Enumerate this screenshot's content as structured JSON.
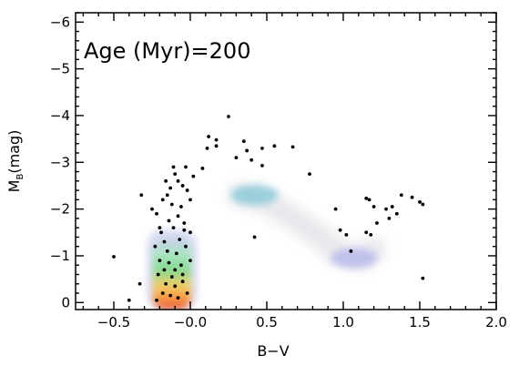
{
  "chart_data": {
    "type": "scatter",
    "annotation": "Age  (Myr)=200",
    "xlabel": "B−V",
    "ylabel_main": "M",
    "ylabel_sub": "B",
    "ylabel_tail": "(mag)",
    "xlim": [
      -0.75,
      2.0
    ],
    "ylim": [
      0.15,
      -6.2
    ],
    "y_inverted": true,
    "x_ticks": [
      {
        "value": -0.5,
        "label": "−0.5"
      },
      {
        "value": 0.0,
        "label": "−0.0"
      },
      {
        "value": 0.5,
        "label": "0.5"
      },
      {
        "value": 1.0,
        "label": "1.0"
      },
      {
        "value": 1.5,
        "label": "1.5"
      },
      {
        "value": 2.0,
        "label": "2.0"
      }
    ],
    "y_ticks": [
      {
        "value": 0,
        "label": "0"
      },
      {
        "value": -1,
        "label": "−1"
      },
      {
        "value": -2,
        "label": "−2"
      },
      {
        "value": -3,
        "label": "−3"
      },
      {
        "value": -4,
        "label": "−4"
      },
      {
        "value": -5,
        "label": "−5"
      },
      {
        "value": -6,
        "label": "−6"
      }
    ],
    "density_model": {
      "main_sequence": {
        "x_center": -0.12,
        "y_top": -1.3,
        "y_bottom": 0.0,
        "colors": [
          "#c9ccec",
          "#a9e7c0",
          "#7fd98a",
          "#f0d060",
          "#ff9b3c",
          "#e2442a"
        ]
      },
      "giant_branch": [
        {
          "x": 0.32,
          "y": -2.3
        },
        {
          "x": 0.42,
          "y": -2.25
        },
        {
          "x": 0.55,
          "y": -2.05
        },
        {
          "x": 0.7,
          "y": -1.75
        },
        {
          "x": 0.85,
          "y": -1.4
        },
        {
          "x": 0.98,
          "y": -1.05
        },
        {
          "x": 1.12,
          "y": -0.95
        },
        {
          "x": 1.2,
          "y": -1.15
        }
      ],
      "clumps": [
        {
          "x": 0.42,
          "y": -2.3,
          "color": "#86c9d8"
        },
        {
          "x": 1.07,
          "y": -0.95,
          "color": "#b6b8ec"
        }
      ]
    },
    "points": [
      {
        "x": 0.25,
        "y": -3.98
      },
      {
        "x": 0.12,
        "y": -3.55
      },
      {
        "x": 0.17,
        "y": -3.48
      },
      {
        "x": 0.11,
        "y": -3.3
      },
      {
        "x": 0.17,
        "y": -3.35
      },
      {
        "x": 0.35,
        "y": -3.45
      },
      {
        "x": 0.37,
        "y": -3.25
      },
      {
        "x": 0.47,
        "y": -3.3
      },
      {
        "x": 0.55,
        "y": -3.35
      },
      {
        "x": 0.67,
        "y": -3.33
      },
      {
        "x": 0.3,
        "y": -3.1
      },
      {
        "x": 0.4,
        "y": -3.05
      },
      {
        "x": 0.47,
        "y": -2.93
      },
      {
        "x": 0.08,
        "y": -2.87
      },
      {
        "x": 0.78,
        "y": -2.75
      },
      {
        "x": 0.95,
        "y": -2.0
      },
      {
        "x": 1.15,
        "y": -2.23
      },
      {
        "x": 1.17,
        "y": -2.2
      },
      {
        "x": 1.2,
        "y": -2.05
      },
      {
        "x": 1.28,
        "y": -2.0
      },
      {
        "x": 1.32,
        "y": -2.05
      },
      {
        "x": 1.38,
        "y": -2.3
      },
      {
        "x": 1.45,
        "y": -2.25
      },
      {
        "x": 1.5,
        "y": -2.15
      },
      {
        "x": 1.52,
        "y": -2.1
      },
      {
        "x": 1.3,
        "y": -1.8
      },
      {
        "x": 1.35,
        "y": -1.9
      },
      {
        "x": 1.22,
        "y": -1.7
      },
      {
        "x": 1.15,
        "y": -1.5
      },
      {
        "x": 1.18,
        "y": -1.45
      },
      {
        "x": 1.05,
        "y": -1.1
      },
      {
        "x": 1.02,
        "y": -1.45
      },
      {
        "x": 0.98,
        "y": -1.55
      },
      {
        "x": 0.42,
        "y": -1.4
      },
      {
        "x": 1.52,
        "y": -0.52
      },
      {
        "x": -0.5,
        "y": -0.98
      },
      {
        "x": -0.33,
        "y": -0.4
      },
      {
        "x": -0.4,
        "y": -0.05
      },
      {
        "x": -0.32,
        "y": -2.3
      },
      {
        "x": -0.22,
        "y": -1.9
      },
      {
        "x": -0.2,
        "y": -1.6
      },
      {
        "x": -0.1,
        "y": -2.75
      },
      {
        "x": -0.08,
        "y": -2.6
      },
      {
        "x": -0.05,
        "y": -2.5
      },
      {
        "x": -0.15,
        "y": -2.3
      },
      {
        "x": -0.18,
        "y": -2.2
      },
      {
        "x": -0.12,
        "y": -2.1
      },
      {
        "x": -0.06,
        "y": -2.05
      },
      {
        "x": -0.02,
        "y": -2.4
      },
      {
        "x": -0.03,
        "y": -2.9
      },
      {
        "x": 0.02,
        "y": -2.7
      },
      {
        "x": -0.11,
        "y": -2.9
      },
      {
        "x": -0.25,
        "y": -2.0
      },
      {
        "x": -0.08,
        "y": -1.85
      },
      {
        "x": -0.04,
        "y": -1.7
      },
      {
        "x": -0.14,
        "y": -1.75
      },
      {
        "x": 0.0,
        "y": -2.2
      },
      {
        "x": 0.0,
        "y": -1.5
      },
      {
        "x": -0.17,
        "y": -1.3
      },
      {
        "x": -0.03,
        "y": -1.2
      },
      {
        "x": -0.09,
        "y": -1.05
      },
      {
        "x": -0.2,
        "y": -0.9
      },
      {
        "x": -0.14,
        "y": -0.85
      },
      {
        "x": -0.06,
        "y": -0.8
      },
      {
        "x": 0.0,
        "y": -0.9
      },
      {
        "x": -0.21,
        "y": -0.6
      },
      {
        "x": -0.12,
        "y": -0.55
      },
      {
        "x": -0.16,
        "y": -0.4
      },
      {
        "x": -0.1,
        "y": -0.35
      },
      {
        "x": -0.05,
        "y": -0.45
      },
      {
        "x": -0.18,
        "y": -0.2
      },
      {
        "x": -0.13,
        "y": -0.15
      },
      {
        "x": -0.08,
        "y": -0.1
      },
      {
        "x": -0.22,
        "y": -0.05
      },
      {
        "x": -0.02,
        "y": -0.2
      },
      {
        "x": -0.15,
        "y": -1.1
      },
      {
        "x": -0.19,
        "y": -1.5
      },
      {
        "x": -0.11,
        "y": -1.6
      },
      {
        "x": -0.07,
        "y": -1.35
      },
      {
        "x": -0.16,
        "y": -2.6
      },
      {
        "x": -0.13,
        "y": -2.45
      },
      {
        "x": -0.04,
        "y": -1.55
      },
      {
        "x": -0.23,
        "y": -1.2
      },
      {
        "x": -0.1,
        "y": -0.7
      },
      {
        "x": -0.17,
        "y": -0.7
      },
      {
        "x": -0.05,
        "y": -0.6
      }
    ]
  }
}
